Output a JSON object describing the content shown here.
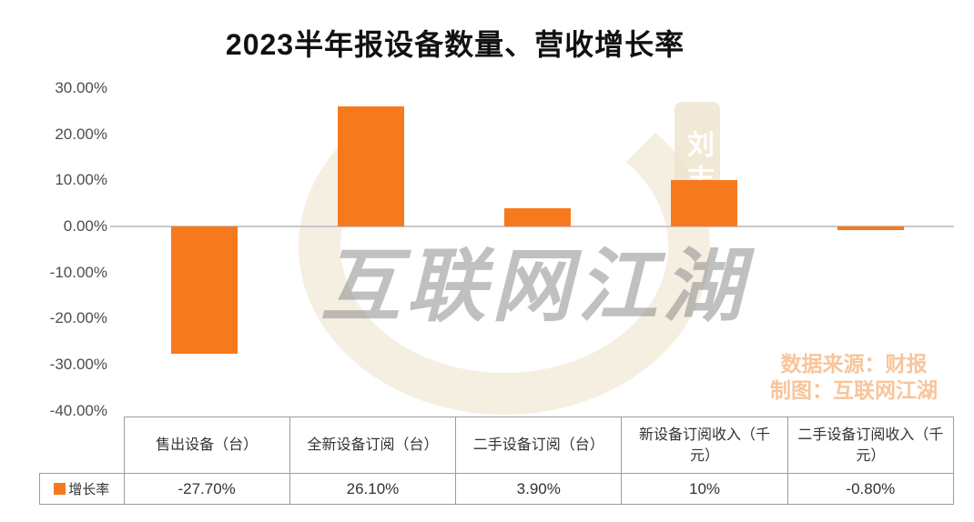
{
  "chart_data": {
    "type": "bar",
    "title": "2023半年报设备数量、营收增长率",
    "categories": [
      "售出设备（台）",
      "全新设备订阅（台）",
      "二手设备订阅（台）",
      "新设备订阅收入（千元）",
      "二手设备订阅收入（千元）"
    ],
    "series": [
      {
        "name": "增长率",
        "values": [
          -27.7,
          26.1,
          3.9,
          10,
          -0.8
        ]
      }
    ],
    "value_labels": [
      "-27.70%",
      "26.10%",
      "3.90%",
      "10%",
      "-0.80%"
    ],
    "xlabel": "",
    "ylabel": "",
    "ylim": [
      -40,
      30
    ],
    "ytick_labels": [
      "30.00%",
      "20.00%",
      "10.00%",
      "0.00%",
      "-10.00%",
      "-20.00%",
      "-30.00%",
      "-40.00%"
    ],
    "grid": false,
    "legend_position": "bottom-table-row"
  },
  "watermark": {
    "calligraphy_text": "互联网江湖",
    "seal_text": "刘志"
  },
  "credits": {
    "line1": "数据来源：财报",
    "line2": "制图：互联网江湖"
  },
  "colors": {
    "bar": "#F7791E",
    "credits_text": "#F8C59B",
    "watermark_text": "#828282",
    "watermark_ring": "#EDE2CC",
    "watermark_seal_bg": "#EFE5D0",
    "axis_line": "#C7C7C7",
    "table_border": "#9C9C9C"
  }
}
